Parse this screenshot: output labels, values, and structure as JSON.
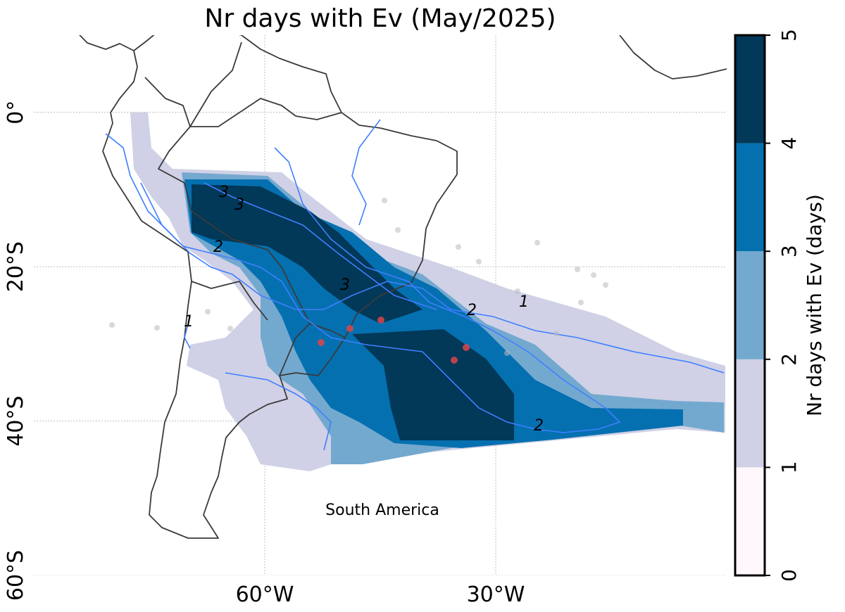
{
  "title": "Nr days with Ev (May/2025)",
  "map": {
    "xlim": [
      -90,
      0
    ],
    "ylim": [
      -60,
      10
    ],
    "xticks": [
      {
        "value": -60,
        "label": "60°W"
      },
      {
        "value": -30,
        "label": "30°W"
      }
    ],
    "yticks": [
      {
        "value": 0,
        "label": "0°"
      },
      {
        "value": -20,
        "label": "20°S"
      },
      {
        "value": -40,
        "label": "40°S"
      },
      {
        "value": -60,
        "label": "60°S"
      }
    ],
    "annotation": "South America",
    "contour_labels": [
      3,
      3,
      2,
      3,
      2,
      1,
      2,
      1
    ]
  },
  "colorbar": {
    "label": "Nr days with Ev (days)",
    "lim": [
      0,
      5
    ],
    "ticks": [
      0,
      1,
      2,
      3,
      4,
      5
    ],
    "colors": [
      "#fff7fb",
      "#d0d1e6",
      "#74a9cf",
      "#0570b0",
      "#023858"
    ]
  }
}
